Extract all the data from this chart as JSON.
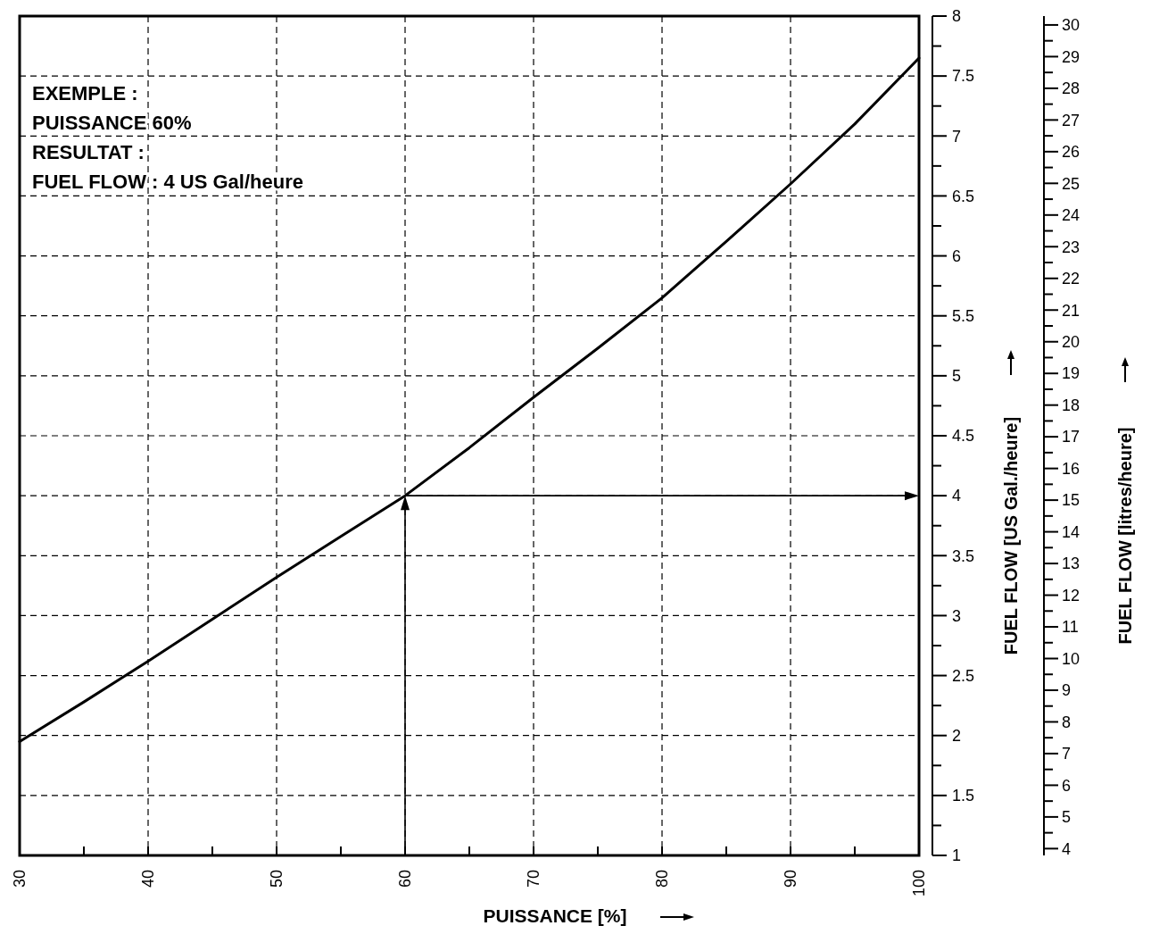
{
  "chart_data": {
    "type": "line",
    "xlabel": "PUISSANCE [%]",
    "ylabel": "FUEL FLOW [US Gal./heure]",
    "y2label": "FUEL FLOW [litres/heure]",
    "annotations": [
      "EXEMPLE :",
      "PUISSANCE 60%",
      "RESULTAT :",
      "FUEL FLOW : 4 US Gal/heure"
    ],
    "ref_lines": [
      {
        "axis": "x",
        "value": 60
      },
      {
        "axis": "y",
        "value": 4
      }
    ],
    "xlim": [
      30,
      100
    ],
    "xticks": [
      30,
      40,
      50,
      60,
      70,
      80,
      90,
      100
    ],
    "ylim": [
      1,
      8
    ],
    "yticks": [
      1,
      1.5,
      2,
      2.5,
      3,
      3.5,
      4,
      4.5,
      5,
      5.5,
      6,
      6.5,
      7,
      7.5,
      8
    ],
    "y2lim": [
      3.785,
      30.28
    ],
    "y2ticks": [
      4,
      5,
      6,
      7,
      8,
      9,
      10,
      11,
      12,
      13,
      14,
      15,
      16,
      17,
      18,
      19,
      20,
      21,
      22,
      23,
      24,
      25,
      26,
      27,
      28,
      29,
      30
    ],
    "grid": true,
    "line_style": "solid",
    "series": [
      {
        "color": "#000000",
        "x": [
          30,
          35,
          40,
          45,
          50,
          55,
          60,
          65,
          70,
          75,
          80,
          85,
          90,
          95,
          100
        ],
        "values": [
          1.95,
          2.28,
          2.62,
          2.97,
          3.32,
          3.66,
          4.0,
          4.4,
          4.82,
          5.23,
          5.65,
          6.12,
          6.6,
          7.1,
          7.65
        ]
      }
    ]
  }
}
